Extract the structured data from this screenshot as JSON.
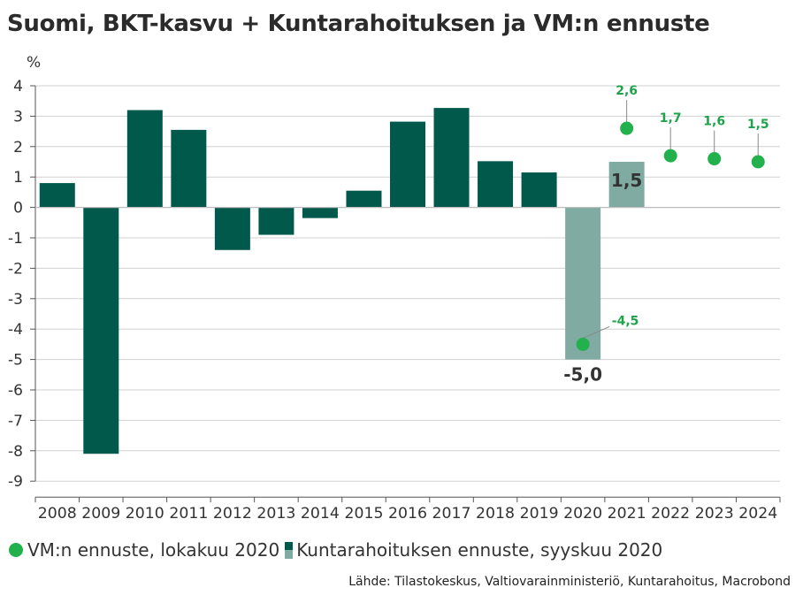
{
  "chart_data": {
    "type": "bar",
    "title": "Suomi, BKT-kasvu + Kuntarahoituksen ja VM:n ennuste",
    "ylabel": "%",
    "ylim": [
      -9,
      4
    ],
    "yticks": [
      "4",
      "3",
      "2",
      "1",
      "0",
      "-1",
      "-2",
      "-3",
      "-4",
      "-5",
      "-6",
      "-7",
      "-8",
      "-9"
    ],
    "categories": [
      "2008",
      "2009",
      "2010",
      "2011",
      "2012",
      "2013",
      "2014",
      "2015",
      "2016",
      "2017",
      "2018",
      "2019",
      "2020",
      "2021",
      "2022",
      "2023",
      "2024"
    ],
    "grid": true,
    "legend_position": "bottom",
    "series": [
      {
        "kind": "bar",
        "values": [
          0.8,
          -8.1,
          3.2,
          2.55,
          -1.4,
          -0.9,
          -0.35,
          0.55,
          2.82,
          3.27,
          1.52,
          1.15,
          null,
          null,
          null,
          null,
          null
        ]
      },
      {
        "kind": "bar",
        "name": "Kuntarahoituksen ennuste, syyskuu 2020",
        "values": [
          null,
          null,
          null,
          null,
          null,
          null,
          null,
          null,
          null,
          null,
          null,
          null,
          -5.0,
          1.5,
          null,
          null,
          null
        ],
        "labels": [
          null,
          null,
          null,
          null,
          null,
          null,
          null,
          null,
          null,
          null,
          null,
          null,
          "-5,0",
          "1,5",
          null,
          null,
          null
        ]
      },
      {
        "kind": "scatter",
        "name": "VM:n ennuste, lokakuu 2020",
        "values": [
          null,
          null,
          null,
          null,
          null,
          null,
          null,
          null,
          null,
          null,
          null,
          null,
          -4.5,
          2.6,
          1.7,
          1.6,
          1.5
        ],
        "labels": [
          null,
          null,
          null,
          null,
          null,
          null,
          null,
          null,
          null,
          null,
          null,
          null,
          "-4,5",
          "2,6",
          "1,7",
          "1,6",
          "1,5"
        ]
      }
    ],
    "colors": {
      "history": "#00594a",
      "forecast_bar": "#7faba3",
      "forecast_dot": "#22b14c",
      "dot_label": "#1ea34a",
      "grid": "#d0d0d0"
    }
  },
  "legend": {
    "dot_label": "VM:n ennuste, lokakuu 2020",
    "bar_label": "Kuntarahoituksen ennuste, syyskuu 2020"
  },
  "source": "Lähde: Tilastokeskus, Valtiovarainministeriö, Kuntarahoitus, Macrobond"
}
